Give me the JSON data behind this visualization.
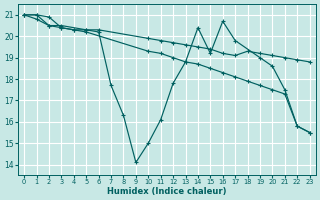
{
  "background_color": "#c8e8e5",
  "grid_color": "#ffffff",
  "line_color": "#006060",
  "xlabel": "Humidex (Indice chaleur)",
  "xlim": [
    -0.5,
    23.5
  ],
  "ylim": [
    13.5,
    21.5
  ],
  "yticks": [
    14,
    15,
    16,
    17,
    18,
    19,
    20,
    21
  ],
  "xticks": [
    0,
    1,
    2,
    3,
    4,
    5,
    6,
    7,
    8,
    9,
    10,
    11,
    12,
    13,
    14,
    15,
    16,
    17,
    18,
    19,
    20,
    21,
    22,
    23
  ],
  "lines": [
    {
      "x": [
        0,
        1,
        2,
        3,
        5,
        6,
        7,
        8,
        9,
        10,
        11,
        12,
        13,
        14,
        15,
        16,
        17,
        19,
        20,
        21,
        22,
        23
      ],
      "y": [
        21.0,
        21.0,
        20.5,
        20.5,
        20.3,
        20.2,
        17.7,
        16.3,
        14.1,
        15.0,
        16.1,
        17.8,
        18.8,
        20.4,
        19.2,
        20.7,
        19.8,
        19.0,
        18.6,
        17.5,
        15.8,
        15.5
      ]
    },
    {
      "x": [
        0,
        1,
        2,
        3,
        4,
        5,
        10,
        11,
        12,
        13,
        14,
        15,
        16,
        17,
        18,
        19,
        20,
        21,
        22,
        23
      ],
      "y": [
        21.0,
        20.8,
        20.5,
        20.4,
        20.3,
        20.2,
        19.3,
        19.2,
        19.0,
        18.8,
        18.7,
        18.5,
        18.3,
        18.1,
        17.9,
        17.7,
        17.5,
        17.3,
        15.8,
        15.5
      ]
    },
    {
      "x": [
        0,
        1,
        2,
        3,
        4,
        5,
        6,
        10,
        11,
        12,
        13,
        14,
        15,
        16,
        17,
        18,
        19,
        20,
        21,
        22,
        23
      ],
      "y": [
        21.0,
        21.0,
        20.9,
        20.4,
        20.3,
        20.3,
        20.3,
        19.9,
        19.8,
        19.7,
        19.6,
        19.5,
        19.4,
        19.2,
        19.1,
        19.3,
        19.2,
        19.1,
        19.0,
        18.9,
        18.8
      ]
    }
  ]
}
